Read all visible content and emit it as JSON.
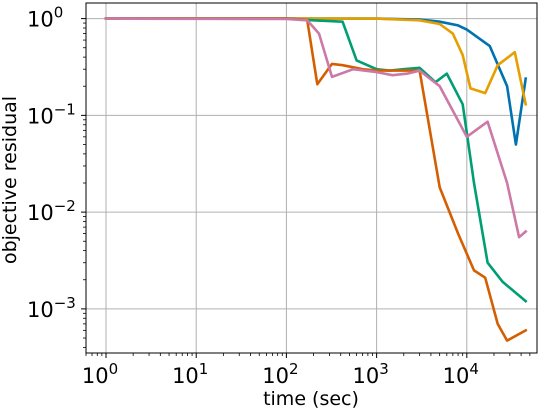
{
  "chart_data": {
    "type": "line",
    "x_scale": "log",
    "y_scale": "log",
    "xlabel": "time (sec)",
    "ylabel": "objective residual",
    "xlim": [
      0.6,
      60000
    ],
    "ylim": [
      0.00035,
      1.45
    ],
    "grid": true,
    "legend": "none",
    "x_ticks": [
      {
        "value": 1,
        "base": "10",
        "exp": "0"
      },
      {
        "value": 10,
        "base": "10",
        "exp": "1"
      },
      {
        "value": 100,
        "base": "10",
        "exp": "2"
      },
      {
        "value": 1000,
        "base": "10",
        "exp": "3"
      },
      {
        "value": 10000,
        "base": "10",
        "exp": "4"
      }
    ],
    "y_ticks": [
      {
        "value": 0.001,
        "base": "10",
        "exp": "−3"
      },
      {
        "value": 0.01,
        "base": "10",
        "exp": "−2"
      },
      {
        "value": 0.1,
        "base": "10",
        "exp": "−1"
      },
      {
        "value": 1,
        "base": "10",
        "exp": "0"
      }
    ],
    "series": [
      {
        "color": "#0072b2",
        "points": [
          [
            1,
            1.0
          ],
          [
            100,
            1.0
          ],
          [
            1000,
            1.0
          ],
          [
            3000,
            0.98
          ],
          [
            5000,
            0.93
          ],
          [
            8000,
            0.85
          ],
          [
            10000,
            0.77
          ],
          [
            18000,
            0.52
          ],
          [
            28000,
            0.2
          ],
          [
            35000,
            0.05
          ],
          [
            45000,
            0.24
          ]
        ]
      },
      {
        "color": "#e69f00",
        "points": [
          [
            1,
            1.0
          ],
          [
            1000,
            1.0
          ],
          [
            3000,
            0.96
          ],
          [
            5000,
            0.88
          ],
          [
            7000,
            0.7
          ],
          [
            9000,
            0.42
          ],
          [
            11000,
            0.19
          ],
          [
            16000,
            0.17
          ],
          [
            22000,
            0.33
          ],
          [
            34000,
            0.45
          ],
          [
            45000,
            0.13
          ]
        ]
      },
      {
        "color": "#009e73",
        "points": [
          [
            1,
            1.0
          ],
          [
            100,
            1.0
          ],
          [
            200,
            0.96
          ],
          [
            420,
            0.93
          ],
          [
            600,
            0.37
          ],
          [
            1000,
            0.3
          ],
          [
            1400,
            0.29
          ],
          [
            2000,
            0.3
          ],
          [
            3000,
            0.31
          ],
          [
            4500,
            0.22
          ],
          [
            6000,
            0.27
          ],
          [
            9000,
            0.13
          ],
          [
            12000,
            0.02
          ],
          [
            17000,
            0.003
          ],
          [
            25000,
            0.0019
          ],
          [
            45000,
            0.0012
          ]
        ]
      },
      {
        "color": "#d55e00",
        "points": [
          [
            1,
            1.0
          ],
          [
            100,
            1.0
          ],
          [
            170,
            0.97
          ],
          [
            220,
            0.21
          ],
          [
            320,
            0.34
          ],
          [
            420,
            0.33
          ],
          [
            700,
            0.3
          ],
          [
            1000,
            0.29
          ],
          [
            2000,
            0.29
          ],
          [
            3000,
            0.29
          ],
          [
            5000,
            0.018
          ],
          [
            8000,
            0.006
          ],
          [
            12000,
            0.0025
          ],
          [
            16000,
            0.0021
          ],
          [
            22000,
            0.0007
          ],
          [
            28000,
            0.00047
          ],
          [
            45000,
            0.0006
          ]
        ]
      },
      {
        "color": "#cc79a7",
        "points": [
          [
            1,
            1.0
          ],
          [
            100,
            0.99
          ],
          [
            170,
            0.96
          ],
          [
            230,
            0.7
          ],
          [
            320,
            0.25
          ],
          [
            550,
            0.3
          ],
          [
            1000,
            0.28
          ],
          [
            1500,
            0.26
          ],
          [
            2200,
            0.27
          ],
          [
            3000,
            0.29
          ],
          [
            5000,
            0.2
          ],
          [
            10000,
            0.06
          ],
          [
            17000,
            0.086
          ],
          [
            28000,
            0.02
          ],
          [
            38000,
            0.0055
          ],
          [
            45000,
            0.0063
          ]
        ]
      }
    ]
  }
}
